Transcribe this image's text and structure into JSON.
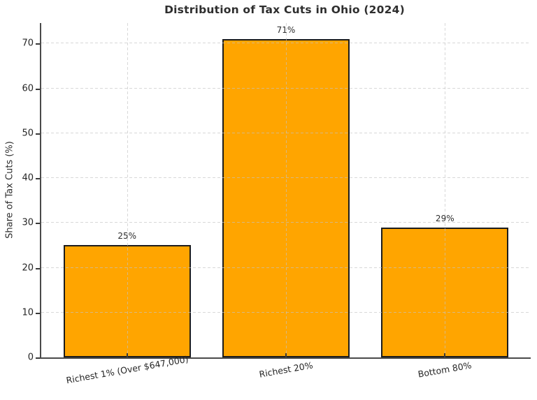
{
  "chart_data": {
    "type": "bar",
    "title": "Distribution of Tax Cuts in Ohio (2024)",
    "ylabel": "Share of Tax Cuts (%)",
    "xlabel": "",
    "categories": [
      "Richest 1% (Over $647,000)",
      "Richest 20%",
      "Bottom 80%"
    ],
    "values": [
      25,
      71,
      29
    ],
    "value_labels": [
      "25%",
      "71%",
      "29%"
    ],
    "yticks": [
      0,
      10,
      20,
      30,
      40,
      50,
      60,
      70
    ],
    "ylim": [
      0,
      74.55
    ],
    "bar_width_fraction": 0.8,
    "x_axis_padding": 0.54,
    "bar_color": "#FFA500",
    "bar_edge_color": "#1c1c1c",
    "grid": "dashed, both axes, drawn over bars",
    "legend_position": "none",
    "background_color": "#ffffff"
  }
}
